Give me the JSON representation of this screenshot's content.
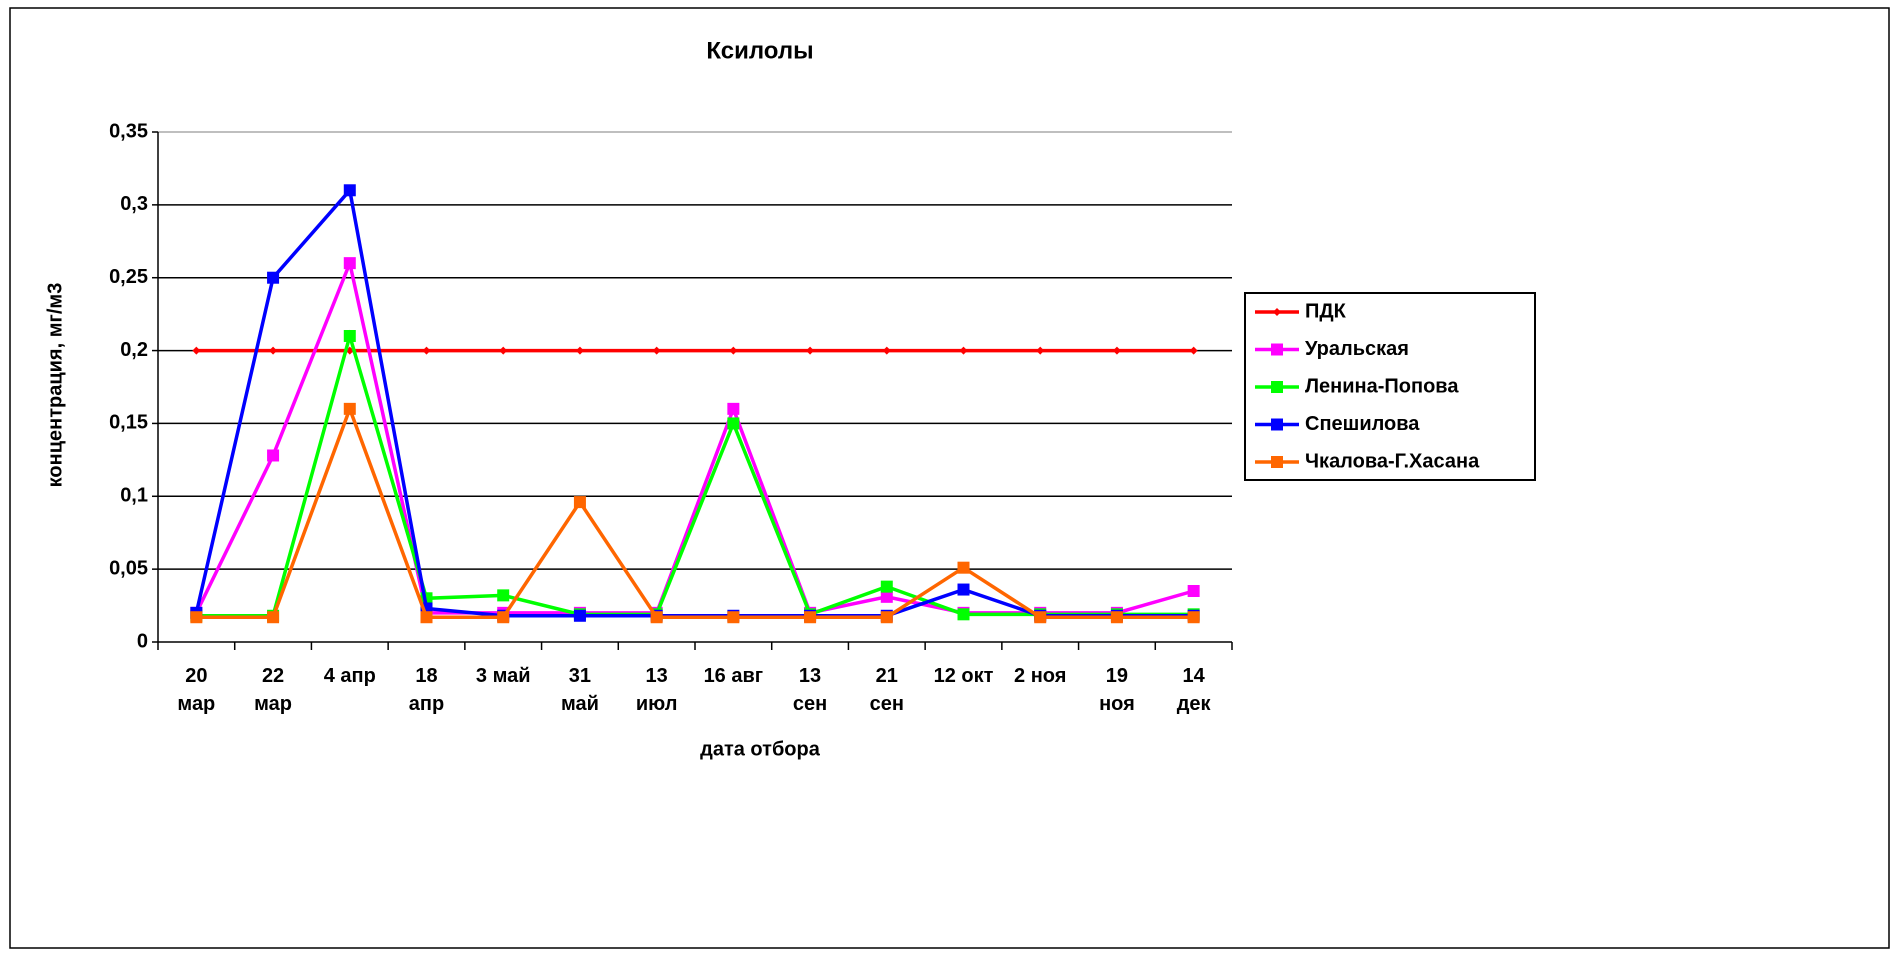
{
  "chart_data": {
    "type": "line",
    "title": "Ксилолы",
    "x_label": "дата отбора",
    "y_label": "концентрация, мг/м3",
    "categories": [
      "20\nмар",
      "22\nмар",
      "4 апр",
      "18\nапр",
      "3 май",
      "31\nмай",
      "13\nиюл",
      "16 авг",
      "13\nсен",
      "21\nсен",
      "12 окт",
      "2 ноя",
      "19\nноя",
      "14\nдек"
    ],
    "ylim": [
      0,
      0.35
    ],
    "yticks": [
      0,
      {
        "value": 0.05,
        "label": "0,05"
      },
      {
        "value": 0.1,
        "label": "0,1"
      },
      {
        "value": 0.15,
        "label": "0,15"
      },
      {
        "value": 0.2,
        "label": "0,2"
      },
      {
        "value": 0.25,
        "label": "0,25"
      },
      {
        "value": 0.3,
        "label": "0,3"
      },
      {
        "value": 0.35,
        "label": "0,35"
      }
    ],
    "grid": true,
    "legend": "right",
    "series": [
      {
        "name": "ПДК",
        "color": "#ff0000",
        "marker": "diamond",
        "values": [
          0.2,
          0.2,
          0.2,
          0.2,
          0.2,
          0.2,
          0.2,
          0.2,
          0.2,
          0.2,
          0.2,
          0.2,
          0.2,
          0.2
        ]
      },
      {
        "name": "Уральская",
        "color": "#ff00ff",
        "marker": "square",
        "values": [
          0.02,
          0.128,
          0.26,
          0.02,
          0.02,
          0.02,
          0.02,
          0.16,
          0.02,
          0.031,
          0.02,
          0.02,
          0.02,
          0.035
        ]
      },
      {
        "name": "Ленина-Попова",
        "color": "#00ff00",
        "marker": "square",
        "values": [
          0.018,
          0.018,
          0.21,
          0.03,
          0.032,
          0.019,
          0.019,
          0.15,
          0.019,
          0.038,
          0.019,
          0.019,
          0.019,
          0.019
        ]
      },
      {
        "name": "Спешилова",
        "color": "#0000ff",
        "marker": "square",
        "values": [
          0.02,
          0.25,
          0.31,
          0.023,
          0.018,
          0.018,
          0.018,
          0.018,
          0.018,
          0.018,
          0.036,
          0.018,
          0.018,
          0.018
        ]
      },
      {
        "name": "Чкалова-Г.Хасана",
        "color": "#ff6600",
        "marker": "square",
        "values": [
          0.017,
          0.017,
          0.16,
          0.017,
          0.017,
          0.096,
          0.017,
          0.017,
          0.017,
          0.017,
          0.051,
          0.017,
          0.017,
          0.017
        ]
      }
    ]
  }
}
